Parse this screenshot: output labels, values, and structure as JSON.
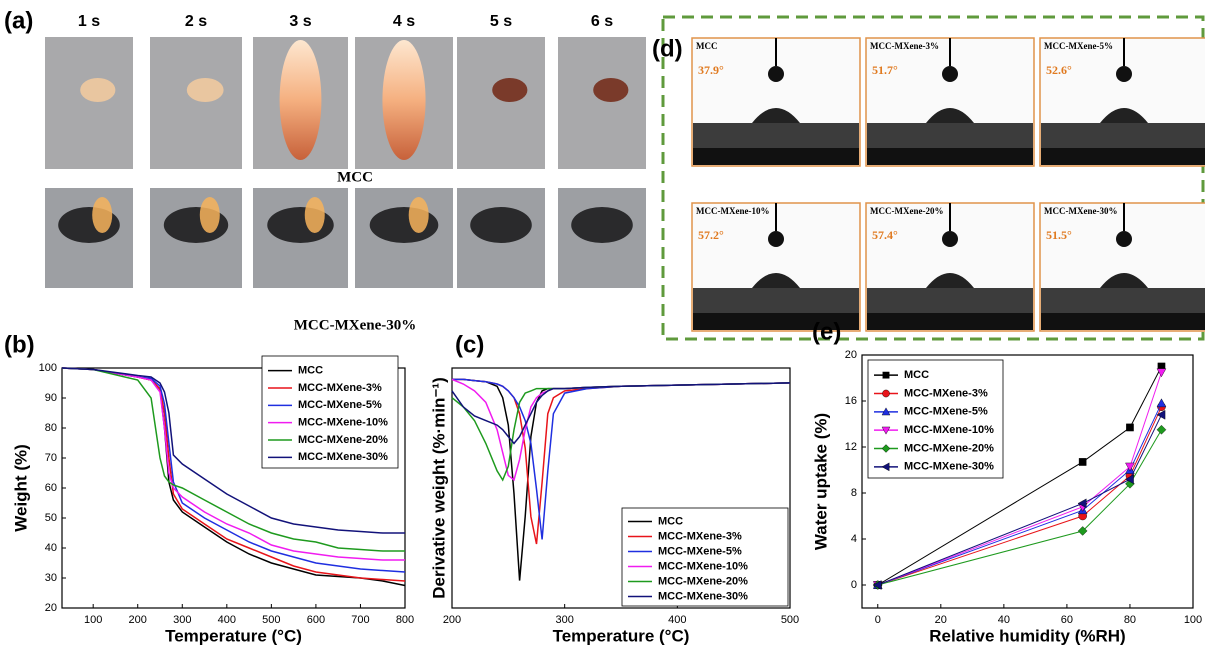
{
  "panel_a": {
    "label": "(a)",
    "times": [
      "1 s",
      "2 s",
      "3 s",
      "4 s",
      "5 s",
      "6 s"
    ],
    "rows": [
      "MCC",
      "MCC-MXene-30%"
    ]
  },
  "panel_d": {
    "label": "(d)",
    "images": [
      {
        "name": "MCC",
        "angle": "37.9°"
      },
      {
        "name": "MCC-MXene-3%",
        "angle": "51.7°"
      },
      {
        "name": "MCC-MXene-5%",
        "angle": "52.6°"
      },
      {
        "name": "MCC-MXene-10%",
        "angle": "57.2°"
      },
      {
        "name": "MCC-MXene-20%",
        "angle": "57.4°"
      },
      {
        "name": "MCC-MXene-30%",
        "angle": "51.5°"
      }
    ]
  },
  "chart_data": [
    {
      "type": "line",
      "label": "(b)",
      "x_label": "Temperature (°C)",
      "y_label": "Weight (%)",
      "xlim": [
        30,
        800
      ],
      "ylim": [
        20,
        100
      ],
      "xticks": [
        100,
        200,
        300,
        400,
        500,
        600,
        700,
        800
      ],
      "yticks": [
        20,
        30,
        40,
        50,
        60,
        70,
        80,
        90,
        100
      ],
      "x": [
        30,
        100,
        200,
        230,
        250,
        260,
        270,
        280,
        300,
        350,
        400,
        450,
        500,
        550,
        600,
        650,
        700,
        750,
        800
      ],
      "series": [
        {
          "name": "MCC",
          "color": "#000000",
          "values": [
            100,
            99.5,
            97,
            96,
            93,
            80,
            62,
            56,
            52,
            47,
            42,
            38,
            35,
            33,
            31,
            30.5,
            30,
            29,
            27.5
          ]
        },
        {
          "name": "MCC-MXene-3%",
          "color": "#e8141a",
          "values": [
            100,
            99.5,
            97,
            96,
            93,
            85,
            70,
            58,
            53,
            48,
            43,
            40,
            37,
            34,
            32,
            31,
            30,
            29.5,
            29
          ]
        },
        {
          "name": "MCC-MXene-5%",
          "color": "#1f2fe0",
          "values": [
            100,
            99.5,
            97,
            96.5,
            94,
            88,
            75,
            62,
            55,
            50,
            46,
            42,
            39,
            37,
            35,
            34,
            33,
            32.5,
            32
          ]
        },
        {
          "name": "MCC-MXene-10%",
          "color": "#f01cf0",
          "values": [
            100,
            99.5,
            97,
            96,
            92,
            80,
            65,
            60,
            57,
            52,
            48,
            45,
            41,
            39,
            38,
            37,
            36.5,
            36,
            36
          ]
        },
        {
          "name": "MCC-MXene-20%",
          "color": "#1e9a1e",
          "values": [
            100,
            99.5,
            96,
            90,
            70,
            64,
            62,
            61,
            60,
            56,
            52,
            48,
            45,
            43,
            42,
            40,
            39.5,
            39,
            39
          ]
        },
        {
          "name": "MCC-MXene-30%",
          "color": "#12127a",
          "values": [
            100,
            99.5,
            97.5,
            97,
            95,
            92,
            85,
            71,
            68,
            63,
            58,
            54,
            50,
            48,
            47,
            46,
            45.5,
            45,
            45
          ]
        }
      ]
    },
    {
      "type": "line",
      "label": "(c)",
      "x_label": "Temperature (°C)",
      "y_label": "Derivative  weight (%·min⁻¹)",
      "xlim": [
        200,
        500
      ],
      "ylim": [
        -100,
        5
      ],
      "xticks": [
        200,
        300,
        400,
        500
      ],
      "x": [
        200,
        210,
        220,
        230,
        240,
        245,
        250,
        255,
        260,
        265,
        270,
        275,
        280,
        285,
        290,
        300,
        320,
        350,
        400,
        450,
        500
      ],
      "series": [
        {
          "name": "MCC",
          "color": "#000000",
          "values": [
            0,
            0,
            -0.5,
            -1,
            -3,
            -8,
            -20,
            -50,
            -88,
            -60,
            -25,
            -10,
            -5,
            -4,
            -4,
            -4,
            -3.5,
            -3,
            -2.5,
            -2,
            -1.5
          ]
        },
        {
          "name": "MCC-MXene-3%",
          "color": "#e8141a",
          "values": [
            0,
            0,
            -0.5,
            -1,
            -2,
            -3,
            -5,
            -8,
            -15,
            -30,
            -60,
            -72,
            -45,
            -15,
            -8,
            -5,
            -4,
            -3,
            -2.5,
            -2,
            -1.5
          ]
        },
        {
          "name": "MCC-MXene-5%",
          "color": "#1f2fe0",
          "values": [
            0,
            0,
            -0.5,
            -1,
            -2,
            -3,
            -5,
            -8,
            -12,
            -18,
            -28,
            -48,
            -70,
            -40,
            -15,
            -6,
            -4,
            -3,
            -2.5,
            -2,
            -1.5
          ]
        },
        {
          "name": "MCC-MXene-10%",
          "color": "#f01cf0",
          "values": [
            0,
            -2,
            -5,
            -10,
            -22,
            -32,
            -42,
            -44,
            -35,
            -22,
            -12,
            -8,
            -6,
            -5,
            -4,
            -4,
            -3.5,
            -3,
            -2.5,
            -2,
            -1.5
          ]
        },
        {
          "name": "MCC-MXene-20%",
          "color": "#1e9a1e",
          "values": [
            -8,
            -12,
            -18,
            -28,
            -40,
            -44,
            -38,
            -22,
            -10,
            -6,
            -5,
            -4,
            -4,
            -4,
            -4,
            -4,
            -3.5,
            -3,
            -2.5,
            -2,
            -1.5
          ]
        },
        {
          "name": "MCC-MXene-30%",
          "color": "#12127a",
          "values": [
            -5,
            -12,
            -16,
            -18,
            -20,
            -22,
            -25,
            -28,
            -25,
            -20,
            -15,
            -10,
            -7,
            -5,
            -4,
            -4,
            -3.5,
            -3,
            -2.5,
            -2,
            -1.5
          ]
        }
      ]
    },
    {
      "type": "scatter",
      "label": "(e)",
      "x_label": "Relative humidity (%RH)",
      "y_label": "Water uptake (%)",
      "xlim": [
        -5,
        100
      ],
      "ylim": [
        -2,
        20
      ],
      "xticks": [
        0,
        20,
        40,
        60,
        80,
        100
      ],
      "yticks": [
        0,
        4,
        8,
        12,
        16,
        20
      ],
      "x": [
        0,
        65,
        80,
        90
      ],
      "series": [
        {
          "name": "MCC",
          "color": "#000000",
          "marker": "square",
          "values": [
            0,
            10.7,
            13.7,
            19
          ]
        },
        {
          "name": "MCC-MXene-3%",
          "color": "#e8141a",
          "marker": "circle",
          "values": [
            0,
            6.0,
            9.5,
            15.5
          ]
        },
        {
          "name": "MCC-MXene-5%",
          "color": "#1f2fe0",
          "marker": "triangle-up",
          "values": [
            0,
            6.5,
            10,
            15.8
          ]
        },
        {
          "name": "MCC-MXene-10%",
          "color": "#f01cf0",
          "marker": "triangle-down",
          "values": [
            0,
            6.8,
            10.3,
            18.5
          ]
        },
        {
          "name": "MCC-MXene-20%",
          "color": "#1e9a1e",
          "marker": "diamond",
          "values": [
            0,
            4.7,
            8.8,
            13.5
          ]
        },
        {
          "name": "MCC-MXene-30%",
          "color": "#12127a",
          "marker": "triangle-left",
          "values": [
            0,
            7.1,
            9.2,
            14.8
          ]
        }
      ]
    }
  ]
}
